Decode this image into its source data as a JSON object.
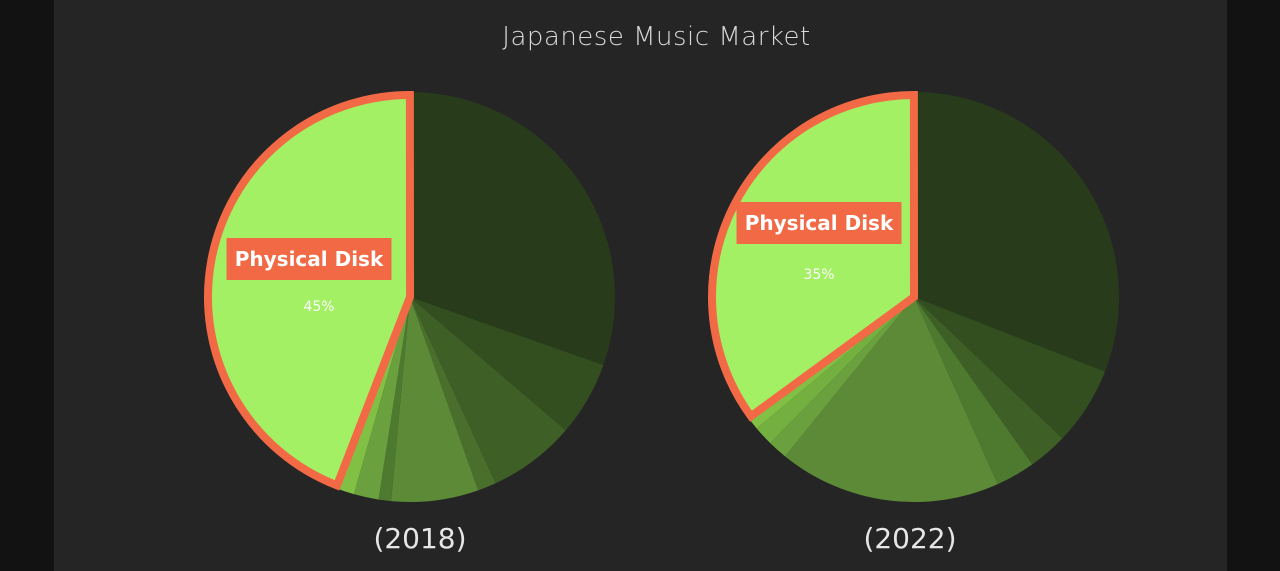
{
  "chart_data": [
    {
      "type": "pie",
      "label": "(2018)",
      "highlight": {
        "category": "Physical Disk",
        "value_label": "45%"
      },
      "slices": [
        {
          "value": 31,
          "color": "#283c1b"
        },
        {
          "value": 6,
          "color": "#334f20"
        },
        {
          "value": 7,
          "color": "#3e5f25"
        },
        {
          "value": 1.5,
          "color": "#4a6f2c"
        },
        {
          "value": 7,
          "color": "#5c8a37"
        },
        {
          "value": 1,
          "color": "#4e7a30"
        },
        {
          "value": 2,
          "color": "#6aa03e"
        },
        {
          "value": 1.5,
          "color": "#81c045"
        },
        {
          "value": 45,
          "color": "#a3f064",
          "highlight": true
        }
      ]
    },
    {
      "type": "pie",
      "label": "(2022)",
      "highlight": {
        "category": "Physical Disk",
        "value_label": "35%"
      },
      "slices": [
        {
          "value": 30,
          "color": "#283c1b"
        },
        {
          "value": 6,
          "color": "#334f20"
        },
        {
          "value": 3,
          "color": "#3e5f25"
        },
        {
          "value": 3,
          "color": "#4e7a30"
        },
        {
          "value": 17,
          "color": "#5c8a37"
        },
        {
          "value": 1.5,
          "color": "#6aa03e"
        },
        {
          "value": 1.5,
          "color": "#74b040"
        },
        {
          "value": 1,
          "color": "#81c045"
        },
        {
          "value": 34,
          "color": "#a3f064",
          "highlight": true
        }
      ]
    }
  ],
  "title": "Japanese Music Market",
  "colors": {
    "highlight_stroke": "#f26a45",
    "background": "#252525",
    "outer_background": "#121212"
  }
}
